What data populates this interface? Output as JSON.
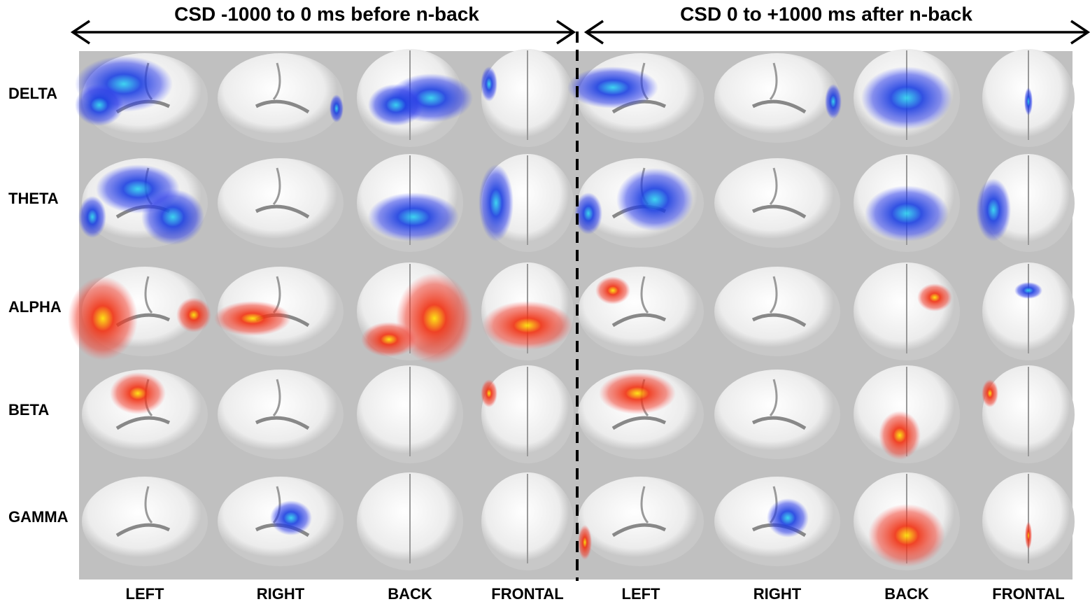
{
  "panels": [
    {
      "title": "CSD -1000 to 0 ms before n-back",
      "columns": [
        "LEFT",
        "RIGHT",
        "BACK",
        "FRONTAL"
      ]
    },
    {
      "title": "CSD 0 to +1000 ms after n-back",
      "columns": [
        "LEFT",
        "RIGHT",
        "BACK",
        "FRONTAL"
      ]
    }
  ],
  "rows": [
    "DELTA",
    "THETA",
    "ALPHA",
    "BETA",
    "GAMMA"
  ]
}
